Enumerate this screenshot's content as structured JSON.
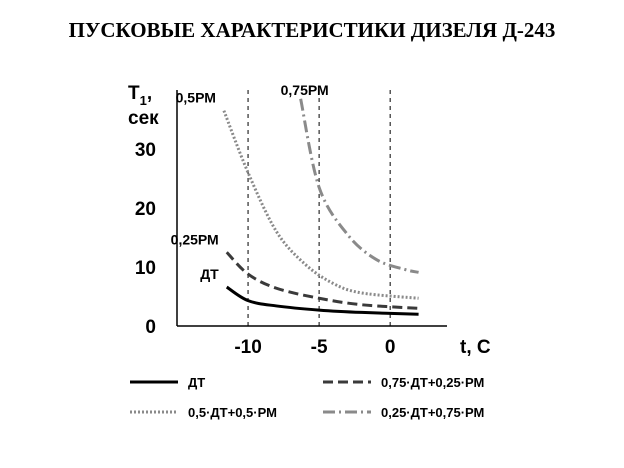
{
  "title": "ПУСКОВЫЕ ХАРАКТЕРИСТИКИ ДИЗЕЛЯ Д-243",
  "chart_data": {
    "type": "line",
    "title": "ПУСКОВЫЕ ХАРАКТЕРИСТИКИ ДИЗЕЛЯ Д-243",
    "ylabel_main": "T",
    "ylabel_sub": "1",
    "ylabel_unit": ", сек",
    "xlabel": "t,  C",
    "xlim": [
      -15,
      4
    ],
    "ylim": [
      0,
      40
    ],
    "xticks": [
      -10,
      -5,
      0
    ],
    "xtick_labels": [
      "-10",
      "-5",
      "0"
    ],
    "yticks": [
      0,
      10,
      20,
      30
    ],
    "ytick_labels": [
      "0",
      "10",
      "20",
      "30"
    ],
    "grid": "vertical dashed",
    "series": [
      {
        "name": "ДТ",
        "curve_label": "ДТ",
        "color": "#000000",
        "dash": "solid",
        "points": [
          [
            -11.5,
            6.6
          ],
          [
            -10,
            4.3
          ],
          [
            -8,
            3.4
          ],
          [
            -5,
            2.7
          ],
          [
            -2,
            2.3
          ],
          [
            2,
            2.0
          ]
        ]
      },
      {
        "name": "0,75·ДТ+0,25·РМ",
        "curve_label": "0,25РМ",
        "color": "#3a3a3a",
        "dash": "longdash",
        "points": [
          [
            -11.5,
            12.5
          ],
          [
            -10,
            8.8
          ],
          [
            -8,
            6.4
          ],
          [
            -5,
            4.7
          ],
          [
            -2,
            3.6
          ],
          [
            2,
            3.0
          ]
        ]
      },
      {
        "name": "0,5·ДТ+0,5·РМ",
        "curve_label": "0,5РМ",
        "color": "#8a8a8a",
        "dash": "dotted",
        "points": [
          [
            -11.7,
            36.5
          ],
          [
            -10,
            26
          ],
          [
            -8,
            16
          ],
          [
            -6,
            10.5
          ],
          [
            -4,
            7.2
          ],
          [
            -2,
            5.6
          ],
          [
            2,
            4.7
          ]
        ]
      },
      {
        "name": "0,25·ДТ+0,75·РМ",
        "curve_label": "0,75РМ",
        "color": "#8a8a8a",
        "dash": "dashdot",
        "points": [
          [
            -6.3,
            38.5
          ],
          [
            -5,
            23.5
          ],
          [
            -3,
            15.5
          ],
          [
            -1,
            11.3
          ],
          [
            1,
            9.6
          ],
          [
            2,
            9.1
          ]
        ]
      }
    ],
    "legend": [
      {
        "text": "ДТ",
        "series": 0
      },
      {
        "text": "0,75·ДТ+0,25·РМ",
        "series": 1
      },
      {
        "text": "0,5·ДТ+0,5·РМ",
        "series": 2
      },
      {
        "text": "0,25·ДТ+0,75·РМ",
        "series": 3
      }
    ],
    "legend_placement": "bottom"
  }
}
